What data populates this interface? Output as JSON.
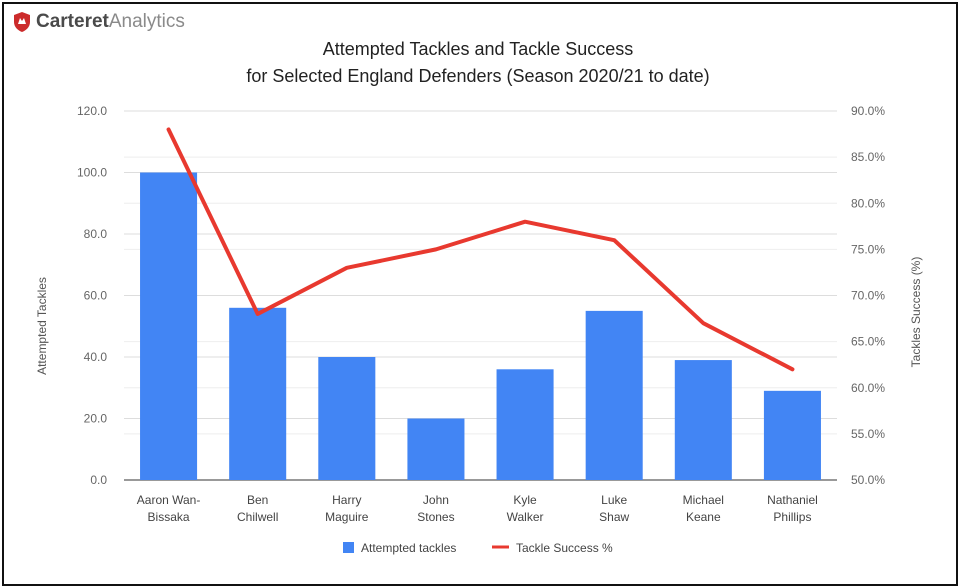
{
  "brand": {
    "name_bold": "Carteret",
    "name_light": "Analytics",
    "accent": "#cc2b2b"
  },
  "chart_data": {
    "type": "bar",
    "title_lines": [
      "Attempted Tackles and Tackle Success",
      "for Selected England Defenders (Season 2020/21 to date)"
    ],
    "categories": [
      [
        "Aaron Wan-",
        "Bissaka"
      ],
      [
        "Ben",
        "Chilwell"
      ],
      [
        "Harry",
        "Maguire"
      ],
      [
        "John",
        "Stones"
      ],
      [
        "Kyle",
        "Walker"
      ],
      [
        "Luke",
        "Shaw"
      ],
      [
        "Michael",
        "Keane"
      ],
      [
        "Nathaniel",
        "Phillips"
      ]
    ],
    "series": [
      {
        "name": "Attempted tackles",
        "type": "bar",
        "axis": "left",
        "color": "#4285f4",
        "values": [
          100,
          56,
          40,
          20,
          36,
          55,
          39,
          29
        ]
      },
      {
        "name": "Tackle Success %",
        "type": "line",
        "axis": "right",
        "color": "#e8392f",
        "values": [
          88.0,
          68.0,
          73.0,
          75.0,
          78.0,
          76.0,
          67.0,
          62.0
        ]
      }
    ],
    "ylabel_left": "Attempted Tackles",
    "ylabel_right": "Tackles Success (%)",
    "ylim_left": [
      0,
      120
    ],
    "ylim_right": [
      50,
      90
    ],
    "yticks_left": [
      "0.0",
      "20.0",
      "40.0",
      "60.0",
      "80.0",
      "100.0",
      "120.0"
    ],
    "yticks_right": [
      "50.0%",
      "55.0%",
      "60.0%",
      "65.0%",
      "70.0%",
      "75.0%",
      "80.0%",
      "85.0%",
      "90.0%"
    ],
    "grid": true,
    "legend_position": "bottom"
  }
}
